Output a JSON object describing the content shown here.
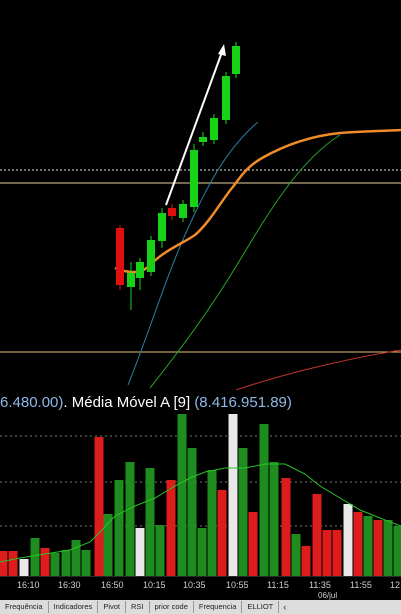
{
  "indicator_header": {
    "prev_value_fragment": "6.480.00)",
    "separator": ".",
    "label": "Média Móvel A [9]",
    "value": "(8.416.951.89)"
  },
  "time_axis": {
    "ticks": [
      "16:10",
      "16:30",
      "16:50",
      "10:15",
      "10:35",
      "10:55",
      "11:15",
      "11:35",
      "11:55",
      "12"
    ],
    "date_label": "06/jul"
  },
  "tabs": [
    "Frequência",
    "Indicadores",
    "Pivot",
    "RSI",
    "prior code",
    "Frequencia",
    "ELLIOT"
  ],
  "tab_scroll_icon": "‹",
  "colors": {
    "up": "#17d217",
    "down": "#e01010",
    "ma_orange": "#f08c28",
    "vol_up": "#1e8c1e",
    "vol_down": "#dd1c1c",
    "vol_neutral": "#e8e8e8"
  },
  "icons": [
    "arrow-annotation-icon"
  ]
}
